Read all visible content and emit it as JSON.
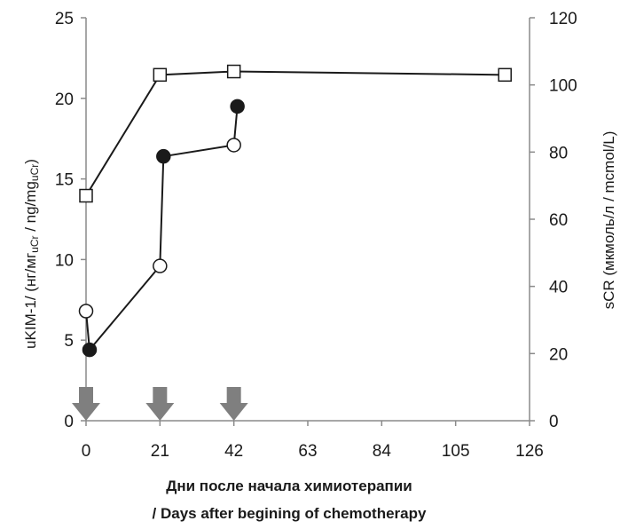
{
  "chart_data": {
    "type": "line",
    "x_ticks": [
      "0",
      "21",
      "42",
      "63",
      "84",
      "105",
      "126"
    ],
    "x_tick_values": [
      0,
      21,
      42,
      63,
      84,
      105,
      126
    ],
    "xlim": [
      0,
      126
    ],
    "xlabel_line1": "Дни после начала химиотерапии",
    "xlabel_line2": "/ Days after begining of chemotherapy",
    "y_left": {
      "ylim": [
        0,
        25
      ],
      "ticks": [
        "0",
        "5",
        "10",
        "15",
        "20",
        "25"
      ],
      "tick_values": [
        0,
        5,
        10,
        15,
        20,
        25
      ],
      "label_main": "uKIM-1/ (нг/мг",
      "label_sub1": "uCr",
      "label_mid": " / ng/mg",
      "label_sub2": "uCr",
      "label_end": ")"
    },
    "y_right": {
      "ylim": [
        0,
        120
      ],
      "ticks": [
        "0",
        "20",
        "40",
        "60",
        "80",
        "100",
        "120"
      ],
      "tick_values": [
        0,
        20,
        40,
        60,
        80,
        100,
        120
      ],
      "label": "sCR (мкмоль/л / mcmol/L)"
    },
    "series": [
      {
        "marker": "square-open",
        "axis": "right",
        "x": [
          0,
          21,
          42,
          119
        ],
        "y": [
          67,
          103,
          104,
          103
        ]
      },
      {
        "marker": "circle-mixed",
        "axis": "left",
        "x": [
          0,
          1,
          21,
          22,
          42,
          43
        ],
        "y": [
          6.8,
          4.4,
          9.6,
          16.4,
          17.1,
          19.5
        ],
        "filled": [
          false,
          true,
          false,
          true,
          false,
          true
        ]
      }
    ],
    "arrows_x": [
      0,
      21,
      42
    ],
    "colors": {
      "line": "#1a1a1a",
      "arrow": "#7f7f7f"
    },
    "grid": false
  }
}
